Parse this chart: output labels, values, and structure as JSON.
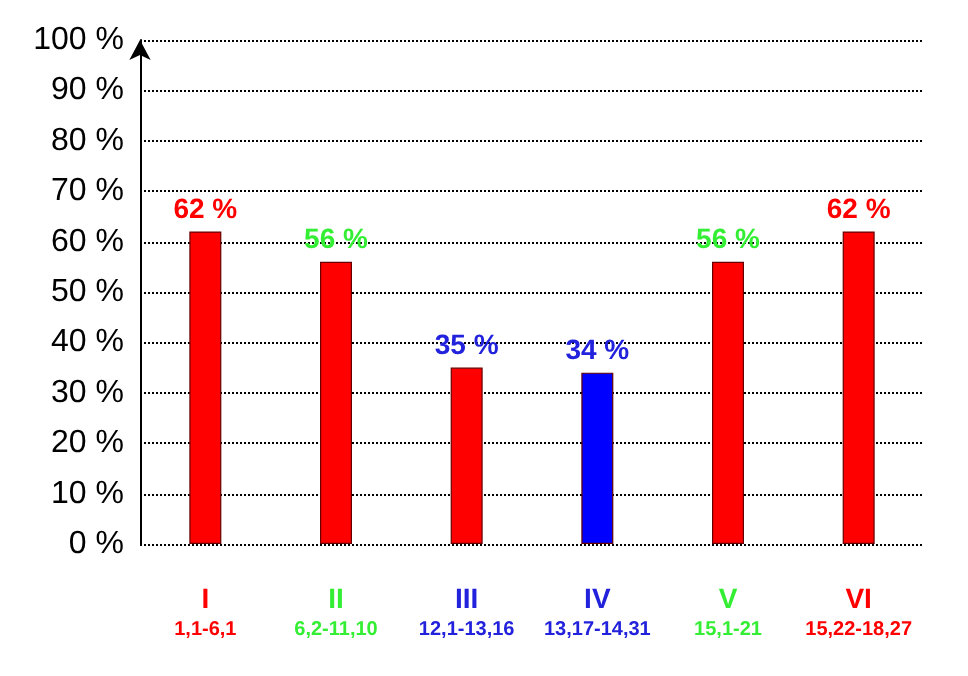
{
  "chart_data": {
    "type": "bar",
    "categories": [
      "I\n1,1-6,1",
      "II\n6,2-11,10",
      "III\n12,1-13,16",
      "IV\n13,17-14,31",
      "V\n15,1-21",
      "VI\n15,22-18,27"
    ],
    "values": [
      62,
      56,
      35,
      34,
      56,
      62
    ],
    "colors": [
      "#ff0000",
      "#ff0000",
      "#ff0000",
      "#0000ff",
      "#ff0000",
      "#ff0000"
    ],
    "value_labels": [
      "62 %",
      "56 %",
      "35 %",
      "34 %",
      "56 %",
      "62 %"
    ],
    "ylim": [
      0,
      100
    ],
    "yticks": [
      {
        "value": 0,
        "label": "0 %"
      },
      {
        "value": 10,
        "label": "10 %"
      },
      {
        "value": 20,
        "label": "20 %"
      },
      {
        "value": 30,
        "label": "30 %"
      },
      {
        "value": 40,
        "label": "40 %"
      },
      {
        "value": 50,
        "label": "50 %"
      },
      {
        "value": 60,
        "label": "60 %"
      },
      {
        "value": 70,
        "label": "70 %"
      },
      {
        "value": 80,
        "label": "80 %"
      },
      {
        "value": 90,
        "label": "90 %"
      },
      {
        "value": 100,
        "label": "100 %"
      }
    ],
    "grid": "y"
  }
}
